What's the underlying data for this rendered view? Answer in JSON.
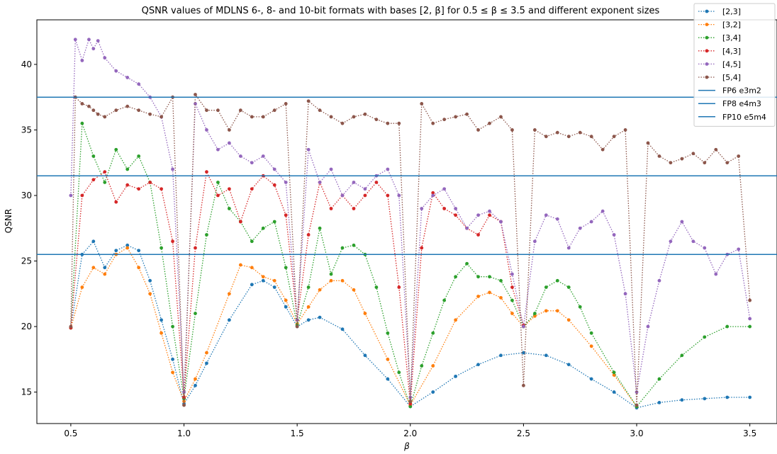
{
  "chart_data": {
    "type": "line",
    "title": "QSNR values of MDLNS 6-, 8- and 10-bit formats with bases [2, β] for 0.5 ≤ β ≤ 3.5 and different exponent sizes",
    "xlabel": "β",
    "ylabel": "QSNR",
    "xlim": [
      0.35,
      3.62
    ],
    "ylim": [
      12.6,
      43.4
    ],
    "xticks": [
      "0.5",
      "1.0",
      "1.5",
      "2.0",
      "2.5",
      "3.0",
      "3.5"
    ],
    "yticks": [
      "15",
      "20",
      "25",
      "30",
      "35",
      "40"
    ],
    "grid": false,
    "legend_position": "top-right",
    "series": [
      {
        "name": "[2,3]",
        "color": "#1f77b4",
        "x": [
          0.5,
          0.55,
          0.6,
          0.65,
          0.7,
          0.75,
          0.8,
          0.85,
          0.9,
          0.95,
          1.0,
          1.05,
          1.1,
          1.2,
          1.3,
          1.35,
          1.4,
          1.45,
          1.5,
          1.55,
          1.6,
          1.7,
          1.8,
          1.9,
          2.0,
          2.1,
          2.2,
          2.3,
          2.4,
          2.5,
          2.6,
          2.7,
          2.8,
          2.9,
          3.0,
          3.1,
          3.2,
          3.3,
          3.4,
          3.5
        ],
        "y": [
          19.9,
          25.5,
          26.5,
          24.5,
          25.8,
          26.2,
          25.8,
          23.5,
          20.5,
          17.5,
          14.1,
          15.5,
          17.2,
          20.5,
          23.2,
          23.5,
          23.0,
          21.5,
          20.0,
          20.5,
          20.7,
          19.8,
          17.8,
          16.0,
          13.9,
          15.0,
          16.2,
          17.1,
          17.8,
          18.0,
          17.8,
          17.1,
          16.0,
          15.0,
          13.8,
          14.2,
          14.4,
          14.5,
          14.6,
          14.6
        ]
      },
      {
        "name": "[3,2]",
        "color": "#ff7f0e",
        "x": [
          0.5,
          0.55,
          0.6,
          0.65,
          0.7,
          0.75,
          0.8,
          0.85,
          0.9,
          0.95,
          1.0,
          1.05,
          1.1,
          1.2,
          1.25,
          1.3,
          1.35,
          1.4,
          1.45,
          1.5,
          1.55,
          1.6,
          1.65,
          1.7,
          1.75,
          1.8,
          1.9,
          2.0,
          2.1,
          2.2,
          2.3,
          2.35,
          2.4,
          2.45,
          2.5,
          2.55,
          2.6,
          2.65,
          2.7,
          2.8,
          2.9,
          3.0
        ],
        "y": [
          19.9,
          23.0,
          24.5,
          24.0,
          25.5,
          26.0,
          24.5,
          22.5,
          19.5,
          16.5,
          14.3,
          16.0,
          18.0,
          22.5,
          24.7,
          24.5,
          23.8,
          23.5,
          22.0,
          20.2,
          21.5,
          22.8,
          23.5,
          23.5,
          22.8,
          21.0,
          17.5,
          14.0,
          17.0,
          20.5,
          22.3,
          22.6,
          22.2,
          21.0,
          20.0,
          20.8,
          21.2,
          21.2,
          20.5,
          18.5,
          16.3,
          13.9
        ]
      },
      {
        "name": "[3,4]",
        "color": "#2ca02c",
        "x": [
          0.5,
          0.55,
          0.6,
          0.65,
          0.7,
          0.75,
          0.8,
          0.85,
          0.9,
          0.95,
          1.0,
          1.05,
          1.1,
          1.15,
          1.2,
          1.25,
          1.3,
          1.35,
          1.4,
          1.45,
          1.5,
          1.55,
          1.6,
          1.65,
          1.7,
          1.75,
          1.8,
          1.85,
          1.9,
          1.95,
          2.0,
          2.05,
          2.1,
          2.15,
          2.2,
          2.25,
          2.3,
          2.35,
          2.4,
          2.45,
          2.5,
          2.55,
          2.6,
          2.65,
          2.7,
          2.75,
          2.8,
          2.9,
          3.0,
          3.1,
          3.2,
          3.3,
          3.4,
          3.5
        ],
        "y": [
          19.9,
          35.5,
          33.0,
          31.0,
          33.5,
          32.0,
          33.0,
          31.0,
          26.0,
          20.0,
          14.5,
          21.0,
          27.0,
          31.0,
          29.0,
          28.0,
          26.5,
          27.5,
          28.0,
          24.5,
          20.1,
          23.0,
          27.5,
          24.0,
          26.0,
          26.2,
          25.5,
          23.0,
          19.5,
          16.5,
          13.9,
          17.0,
          19.5,
          22.0,
          23.8,
          24.8,
          23.8,
          23.8,
          23.5,
          22.0,
          20.0,
          21.0,
          23.0,
          23.5,
          23.0,
          21.5,
          19.5,
          16.5,
          13.9,
          16.0,
          17.8,
          19.2,
          20.0,
          20.0
        ]
      },
      {
        "name": "[4,3]",
        "color": "#d62728",
        "x": [
          0.5,
          0.55,
          0.6,
          0.65,
          0.7,
          0.75,
          0.8,
          0.85,
          0.9,
          0.95,
          1.0,
          1.05,
          1.1,
          1.15,
          1.2,
          1.25,
          1.3,
          1.35,
          1.4,
          1.45,
          1.5,
          1.55,
          1.6,
          1.65,
          1.7,
          1.75,
          1.8,
          1.85,
          1.9,
          1.95,
          2.0,
          2.05,
          2.1,
          2.15,
          2.2,
          2.25,
          2.3,
          2.35,
          2.4,
          2.45,
          2.5
        ],
        "y": [
          19.9,
          30.0,
          31.2,
          31.8,
          29.5,
          30.8,
          30.5,
          31.0,
          30.5,
          26.5,
          14.6,
          26.0,
          31.8,
          30.0,
          30.5,
          28.0,
          30.5,
          31.5,
          30.8,
          28.5,
          20.5,
          27.0,
          31.0,
          29.0,
          30.0,
          29.0,
          30.0,
          31.0,
          30.0,
          23.0,
          14.1,
          26.0,
          30.2,
          29.0,
          28.5,
          27.5,
          27.0,
          28.5,
          28.0,
          23.0,
          20.1
        ]
      },
      {
        "name": "[4,5]",
        "color": "#9467bd",
        "x": [
          0.5,
          0.52,
          0.55,
          0.58,
          0.6,
          0.62,
          0.65,
          0.7,
          0.75,
          0.8,
          0.85,
          0.9,
          0.95,
          1.0,
          1.05,
          1.1,
          1.15,
          1.2,
          1.25,
          1.3,
          1.35,
          1.4,
          1.45,
          1.5,
          1.55,
          1.6,
          1.65,
          1.7,
          1.75,
          1.8,
          1.85,
          1.9,
          1.95,
          2.0,
          2.05,
          2.1,
          2.15,
          2.2,
          2.25,
          2.3,
          2.35,
          2.4,
          2.45,
          2.5,
          2.55,
          2.6,
          2.65,
          2.7,
          2.75,
          2.8,
          2.85,
          2.9,
          2.95,
          3.0,
          3.05,
          3.1,
          3.15,
          3.2,
          3.25,
          3.3,
          3.35,
          3.4,
          3.45,
          3.5
        ],
        "y": [
          30.0,
          41.9,
          40.3,
          41.9,
          41.2,
          41.8,
          40.5,
          39.5,
          39.0,
          38.5,
          37.5,
          36.0,
          32.0,
          15.0,
          37.0,
          35.0,
          33.5,
          34.0,
          33.0,
          32.5,
          33.0,
          32.0,
          31.0,
          20.5,
          33.5,
          31.0,
          32.0,
          30.0,
          31.0,
          30.5,
          31.5,
          32.0,
          30.0,
          14.6,
          29.0,
          30.0,
          30.5,
          29.0,
          27.5,
          28.5,
          28.8,
          28.0,
          24.0,
          20.0,
          26.5,
          28.5,
          28.2,
          26.0,
          27.5,
          28.0,
          28.8,
          27.0,
          22.5,
          15.0,
          20.0,
          23.5,
          26.5,
          28.0,
          26.5,
          26.0,
          24.0,
          25.5,
          25.9,
          20.6
        ]
      },
      {
        "name": "[5,4]",
        "color": "#8c564b",
        "x": [
          0.5,
          0.52,
          0.55,
          0.58,
          0.6,
          0.62,
          0.65,
          0.7,
          0.75,
          0.8,
          0.85,
          0.9,
          0.95,
          1.0,
          1.05,
          1.1,
          1.15,
          1.2,
          1.25,
          1.3,
          1.35,
          1.4,
          1.45,
          1.5,
          1.55,
          1.6,
          1.65,
          1.7,
          1.75,
          1.8,
          1.85,
          1.9,
          1.95,
          2.0,
          2.05,
          2.1,
          2.15,
          2.2,
          2.25,
          2.3,
          2.35,
          2.4,
          2.45,
          2.5,
          2.55,
          2.6,
          2.65,
          2.7,
          2.75,
          2.8,
          2.85,
          2.9,
          2.95,
          3.0,
          3.05,
          3.1,
          3.15,
          3.2,
          3.25,
          3.3,
          3.35,
          3.4,
          3.45,
          3.5
        ],
        "y": [
          20.0,
          37.5,
          37.0,
          36.8,
          36.5,
          36.2,
          36.0,
          36.5,
          36.8,
          36.5,
          36.2,
          36.0,
          37.5,
          14.0,
          37.7,
          36.5,
          36.5,
          35.0,
          36.5,
          36.0,
          36.0,
          36.5,
          37.0,
          20.0,
          37.2,
          36.5,
          36.0,
          35.5,
          36.0,
          36.2,
          35.8,
          35.5,
          35.5,
          14.3,
          37.0,
          35.5,
          35.8,
          36.0,
          36.2,
          35.0,
          35.5,
          36.0,
          35.0,
          15.5,
          35.0,
          34.5,
          34.8,
          34.5,
          34.8,
          34.5,
          33.5,
          34.5,
          35.0,
          14.0,
          34.0,
          33.0,
          32.5,
          32.8,
          33.2,
          32.5,
          33.5,
          32.5,
          33.0,
          22.0
        ]
      },
      {
        "name": "FP6 e3m2",
        "color": "#1f77b4",
        "hline": 25.5
      },
      {
        "name": "FP8 e4m3",
        "color": "#1f77b4",
        "hline": 31.5
      },
      {
        "name": "FP10 e5m4",
        "color": "#1f77b4",
        "hline": 37.5
      }
    ]
  }
}
